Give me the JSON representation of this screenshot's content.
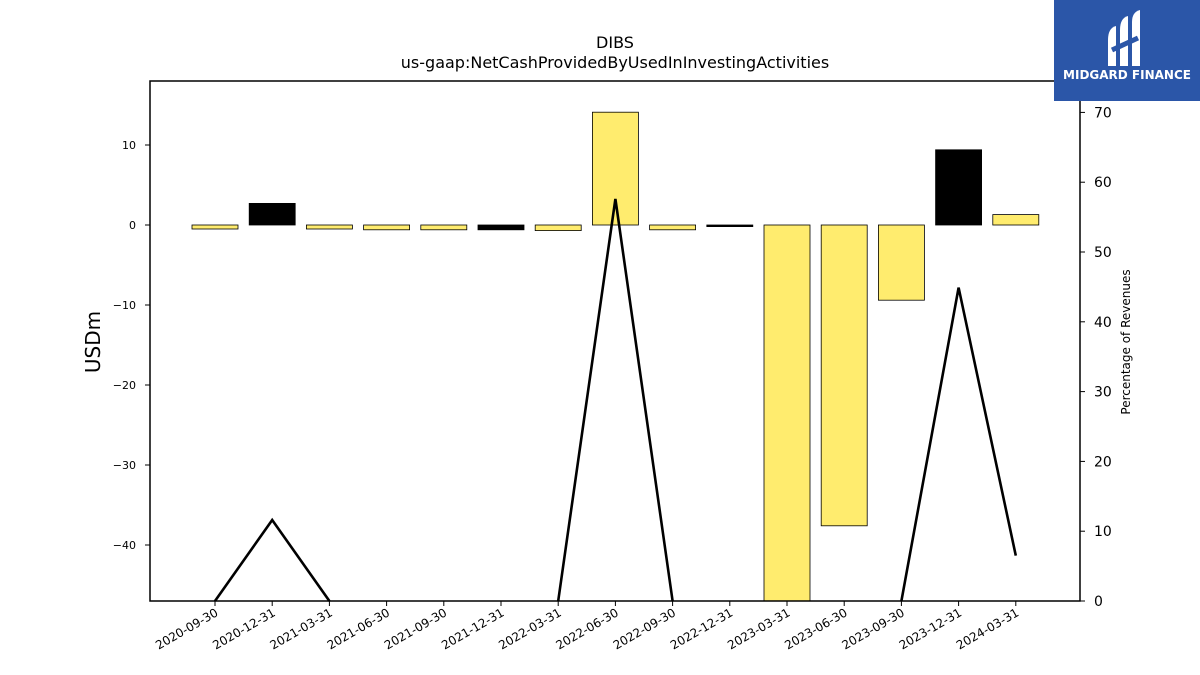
{
  "chart_data": {
    "type": "bar",
    "title": "DIBS",
    "subtitle": "us-gaap:NetCashProvidedByUsedInInvestingActivities",
    "ylabel": "USDm",
    "y2label": "Percentage of Revenues",
    "categories": [
      "2020-09-30",
      "2020-12-31",
      "2021-03-31",
      "2021-06-30",
      "2021-09-30",
      "2021-12-31",
      "2022-03-31",
      "2022-06-30",
      "2022-09-30",
      "2022-12-31",
      "2023-03-31",
      "2023-06-30",
      "2023-09-30",
      "2023-12-31",
      "2024-03-31"
    ],
    "series": [
      {
        "values": [
          -0.5,
          2.7,
          -0.5,
          -0.6,
          -0.6,
          -0.6,
          -0.7,
          14.1,
          -0.6,
          -0.2,
          -47,
          -37.6,
          -9.4,
          9.4,
          1.3
        ],
        "bar_colors": [
          "#ffec6e",
          "#000000",
          "#ffec6e",
          "#ffec6e",
          "#ffec6e",
          "#000000",
          "#ffec6e",
          "#ffec6e",
          "#ffec6e",
          "#000000",
          "#ffec6e",
          "#ffec6e",
          "#ffec6e",
          "#000000",
          "#ffec6e"
        ]
      },
      {
        "axis": "right",
        "type": "line",
        "color": "#000000",
        "values": [
          0,
          11.6,
          0,
          null,
          null,
          null,
          0,
          57.6,
          0,
          null,
          null,
          null,
          0,
          44.9,
          6.5
        ]
      }
    ],
    "ylim": [
      -47,
      18
    ],
    "yticks": [
      10,
      0,
      -10,
      -20,
      -30,
      -40
    ],
    "y2lim": [
      0,
      74.5
    ],
    "y2ticks": [
      0,
      10,
      20,
      30,
      40,
      50,
      60,
      70
    ],
    "grid": false,
    "legend": "none"
  },
  "logo": {
    "text": "MIDGARD FINANCE"
  }
}
